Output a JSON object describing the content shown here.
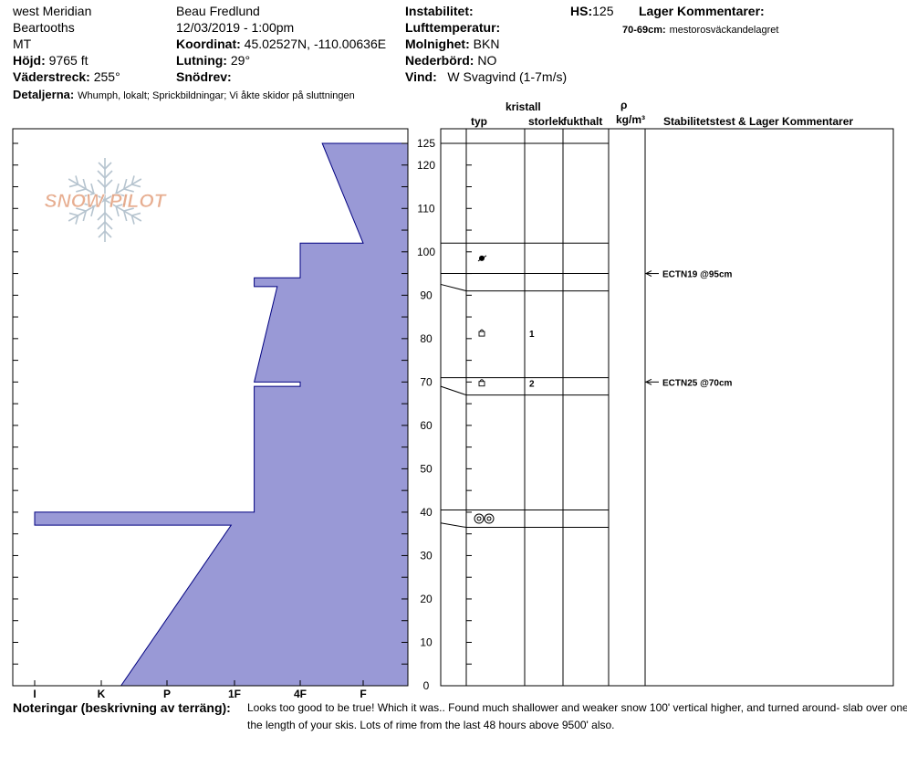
{
  "header": {
    "location": "west Meridian",
    "range": "Beartooths",
    "state": "MT",
    "elevation_label": "Höjd:",
    "elevation_value": "9765 ft",
    "aspect_label": "Väderstreck:",
    "aspect_value": "255°",
    "details_label": "Detaljerna:",
    "details_value": "Whumph, lokalt;  Sprickbildningar;  Vi åkte skidor på sluttningen",
    "observer": "Beau  Fredlund",
    "datetime": "12/03/2019 - 1:00pm",
    "coord_label": "Koordinat:",
    "coord_value": "45.02527N, -110.00636E",
    "slope_label": "Lutning:",
    "slope_value": "29°",
    "snowdrift_label": "Snödrev:",
    "snowdrift_value": "",
    "instability_label": "Instabilitet:",
    "instability_value": "",
    "airtemp_label": "Lufttemperatur:",
    "airtemp_value": "",
    "cloud_label": "Molnighet:",
    "cloud_value": "BKN",
    "precip_label": "Nederbörd:",
    "precip_value": "NO",
    "wind_label": "Vind:",
    "wind_value": "W Svagvind (1-7m/s)",
    "hs_label": "HS:",
    "hs_value": "125",
    "layer_comments_label": "Lager Kommentarer:",
    "layer_comment_depth": "70-69cm:",
    "layer_comment_text": "mestorosväckandelagret"
  },
  "columns": {
    "crystal": "kristall",
    "type": "typ",
    "size": "storlek",
    "moisture": "fukthalt",
    "rho": "ρ",
    "density_unit": "kg/m³",
    "stability": "Stabilitetstest & Lager Kommentarer"
  },
  "notes": {
    "label": "Noteringar (beskrivning av terräng):",
    "line1": "Looks too good to be true! Which it was..  Found much shallower and weaker snow 100' vertical higher, and turned around- slab over one third",
    "line2": "the length of your skis.  Lots of rime from the last 48 hours above 9500' also."
  },
  "logo": {
    "text": "SNOW PILOT"
  },
  "colors": {
    "fill": "#9999d6",
    "outline": "#000080",
    "logo": "#e3a07e"
  },
  "chart_data": {
    "type": "area",
    "title": "",
    "xlabel": "",
    "ylabel": "",
    "hardness_categories": [
      "I",
      "K",
      "P",
      "1F",
      "4F",
      "F"
    ],
    "y_ticks": [
      0,
      10,
      20,
      30,
      40,
      50,
      60,
      70,
      80,
      90,
      100,
      110,
      120,
      125
    ],
    "ylim": [
      0,
      125
    ],
    "hardness_profile": [
      {
        "depth": 0,
        "hardness": 2.3
      },
      {
        "depth": 37,
        "hardness": 3.95
      },
      {
        "depth": 37,
        "hardness": 1.0
      },
      {
        "depth": 40,
        "hardness": 1.0
      },
      {
        "depth": 40,
        "hardness": 4.3
      },
      {
        "depth": 69,
        "hardness": 4.3
      },
      {
        "depth": 69,
        "hardness": 5.0
      },
      {
        "depth": 70,
        "hardness": 5.0
      },
      {
        "depth": 70,
        "hardness": 4.3
      },
      {
        "depth": 92,
        "hardness": 4.65
      },
      {
        "depth": 92,
        "hardness": 4.3
      },
      {
        "depth": 94,
        "hardness": 4.3
      },
      {
        "depth": 94,
        "hardness": 5.0
      },
      {
        "depth": 102,
        "hardness": 5.0
      },
      {
        "depth": 102,
        "hardness": 6.0
      },
      {
        "depth": 125,
        "hardness": 5.35
      }
    ],
    "layer_boundaries": [
      {
        "depth": 125,
        "draw": 125
      },
      {
        "depth": 102,
        "draw": 102
      },
      {
        "depth": 95,
        "draw": 95
      },
      {
        "depth": 91,
        "draw": 92.5
      },
      {
        "depth": 71,
        "draw": 71
      },
      {
        "depth": 67,
        "draw": 69
      },
      {
        "depth": 40.5,
        "draw": 40.5
      },
      {
        "depth": 36.5,
        "draw": 37.5
      }
    ],
    "grains": [
      {
        "depth": 98.5,
        "symbol": "rounded-facet"
      },
      {
        "depth": 81,
        "symbol": "facet",
        "size": "1"
      },
      {
        "depth": 69.5,
        "symbol": "facet",
        "size": "2"
      },
      {
        "depth": 38.5,
        "symbol": "melt-freeze"
      }
    ],
    "stability_tests": [
      {
        "depth": 95,
        "label": "ECTN19 @95cm"
      },
      {
        "depth": 70,
        "label": "ECTN25 @70cm"
      }
    ]
  }
}
